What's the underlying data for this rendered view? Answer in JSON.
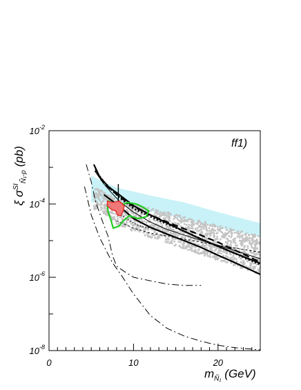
{
  "chart_data": {
    "type": "line",
    "panel_label": "ff1)",
    "xlabel": {
      "main": "m",
      "subscript": "Ñ₁",
      "unit": "(GeV)"
    },
    "ylabel": {
      "prefix": "ξ σ",
      "superscript": "SI",
      "subscript": "Ñ₁-p",
      "unit": "(pb)"
    },
    "xlim": [
      0,
      25
    ],
    "ylim": [
      1e-08,
      0.01
    ],
    "y_scale": "log",
    "x_ticks": [
      0,
      10,
      20
    ],
    "x_tick_labels": [
      "0",
      "10",
      "20"
    ],
    "y_ticks": [
      1e-08,
      1e-06,
      0.0001,
      0.01
    ],
    "y_tick_labels": [
      {
        "base": "10",
        "exp": "-8"
      },
      {
        "base": "10",
        "exp": "-6"
      },
      {
        "base": "10",
        "exp": "-4"
      },
      {
        "base": "10",
        "exp": "-2"
      }
    ],
    "grid": false,
    "regions": [
      {
        "style": "cyan-band",
        "color": "#c8f2f8",
        "upper": [
          [
            5,
            0.0006
          ],
          [
            6,
            0.00045
          ],
          [
            8,
            0.00028
          ],
          [
            12,
            0.00017
          ],
          [
            16,
            0.00011
          ],
          [
            20,
            6e-05
          ],
          [
            25,
            3e-05
          ]
        ],
        "lower": [
          [
            7,
            0.00011
          ],
          [
            10,
            8e-05
          ],
          [
            14,
            5e-05
          ],
          [
            18,
            3e-05
          ],
          [
            22,
            1.8e-05
          ],
          [
            25,
            1.3e-05
          ]
        ]
      },
      {
        "style": "grey-scatter",
        "color": "#c4c4c4",
        "upper": [
          [
            5.3,
            0.00045
          ],
          [
            6,
            0.00025
          ],
          [
            8,
            0.00014
          ],
          [
            10,
            0.0001
          ],
          [
            13,
            7e-05
          ],
          [
            16,
            4.5e-05
          ],
          [
            19,
            3e-05
          ],
          [
            22,
            2e-05
          ],
          [
            25,
            1.4e-05
          ]
        ],
        "lower": [
          [
            6,
            7e-05
          ],
          [
            8,
            2.8e-05
          ],
          [
            10,
            1.8e-05
          ],
          [
            13,
            1e-05
          ],
          [
            16,
            6e-06
          ],
          [
            19,
            3.5e-06
          ],
          [
            22,
            2e-06
          ],
          [
            25,
            1.2e-06
          ]
        ]
      }
    ],
    "contours": [
      {
        "style": "green",
        "color": "#22cc22",
        "points": [
          [
            7,
            0.00012
          ],
          [
            7.5,
            0.00011
          ],
          [
            8.3,
            9e-05
          ],
          [
            9.3,
            0.00011
          ],
          [
            10.3,
            0.0001
          ],
          [
            11,
            8.5e-05
          ],
          [
            11.8,
            6.5e-05
          ],
          [
            11.5,
            4.5e-05
          ],
          [
            10.5,
            4e-05
          ],
          [
            9.5,
            4.8e-05
          ],
          [
            8.8,
            3.5e-05
          ],
          [
            8.3,
            2.5e-05
          ],
          [
            7.6,
            2.2e-05
          ],
          [
            7.3,
            3.8e-05
          ],
          [
            7,
            6e-05
          ],
          [
            6.9,
            9e-05
          ]
        ]
      },
      {
        "style": "red-filled",
        "color": "#f07878",
        "stroke": "#e03030",
        "points": [
          [
            6.9,
            0.00012
          ],
          [
            7.6,
            0.00011
          ],
          [
            8.3,
            0.00012
          ],
          [
            8.9,
            9e-05
          ],
          [
            8.8,
            6.5e-05
          ],
          [
            8.5,
            4.8e-05
          ],
          [
            8.1,
            5e-05
          ],
          [
            7.9,
            6.5e-05
          ],
          [
            7.4,
            7e-05
          ],
          [
            6.9,
            9e-05
          ]
        ]
      }
    ],
    "series": [
      {
        "style": "thick-solid",
        "points": [
          [
            5.3,
            0.0012
          ],
          [
            6,
            0.00055
          ],
          [
            7,
            0.0003
          ],
          [
            8.3,
            0.00018
          ],
          [
            10,
            9e-05
          ],
          [
            12,
            5e-05
          ],
          [
            14,
            3e-05
          ],
          [
            16,
            1.8e-05
          ],
          [
            18,
            1.1e-05
          ],
          [
            20,
            7e-06
          ],
          [
            22,
            4.5e-06
          ],
          [
            25,
            2.4e-06
          ]
        ]
      },
      {
        "style": "thick-dashed",
        "points": [
          [
            5.5,
            0.0009
          ],
          [
            6.2,
            0.00045
          ],
          [
            7.2,
            0.00026
          ],
          [
            8.3,
            0.00016
          ],
          [
            10,
            8.5e-05
          ],
          [
            12,
            5e-05
          ],
          [
            14,
            3.2e-05
          ],
          [
            16,
            2.1e-05
          ],
          [
            18,
            1.4e-05
          ],
          [
            20,
            9e-06
          ],
          [
            22,
            5.5e-06
          ],
          [
            25,
            2.6e-06
          ]
        ]
      },
      {
        "style": "thick-dotted",
        "points": [
          [
            5.5,
            0.0008
          ],
          [
            6.5,
            0.0004
          ],
          [
            7.5,
            0.00023
          ],
          [
            8.5,
            0.00014
          ],
          [
            10,
            7.5e-05
          ],
          [
            12,
            4.5e-05
          ],
          [
            14,
            2.8e-05
          ],
          [
            16,
            1.8e-05
          ],
          [
            18,
            1.1e-05
          ],
          [
            20,
            7e-06
          ],
          [
            22,
            4.5e-06
          ],
          [
            25,
            2.2e-06
          ]
        ]
      },
      {
        "style": "thick-solid-lower",
        "points": [
          [
            6.5,
            0.00018
          ],
          [
            8.5,
            8e-05
          ],
          [
            10,
            4e-05
          ],
          [
            12,
            2.3e-05
          ],
          [
            14,
            1.5e-05
          ],
          [
            16,
            1e-05
          ],
          [
            18,
            6.5e-06
          ],
          [
            20,
            4e-06
          ],
          [
            22,
            2.5e-06
          ],
          [
            25,
            1.2e-06
          ]
        ]
      },
      {
        "style": "thin-solid",
        "points": [
          [
            5.4,
            0.0008
          ],
          [
            6.5,
            0.00035
          ],
          [
            7.5,
            0.00019
          ],
          [
            8.5,
            0.00011
          ],
          [
            10,
            6e-05
          ],
          [
            12,
            3.2e-05
          ],
          [
            14,
            2e-05
          ],
          [
            17,
            1.2e-05
          ],
          [
            20,
            7.5e-06
          ],
          [
            23,
            4.5e-06
          ],
          [
            25,
            3.2e-06
          ]
        ]
      },
      {
        "style": "thin-dotted",
        "points": [
          [
            7,
            0.0001
          ],
          [
            8,
            6e-05
          ],
          [
            9,
            4.2e-05
          ],
          [
            10,
            3e-05
          ],
          [
            11,
            2.4e-05
          ],
          [
            12,
            2.2e-05
          ]
        ]
      },
      {
        "style": "thin-dashed",
        "points": [
          [
            8,
            3.5e-05
          ],
          [
            10,
            2.2e-05
          ],
          [
            12,
            1.6e-05
          ],
          [
            16,
            1.1e-05
          ],
          [
            20,
            7.5e-06
          ],
          [
            25,
            4.8e-06
          ]
        ]
      },
      {
        "style": "vertical-step",
        "points": [
          [
            8.2,
            0.00035
          ],
          [
            8.2,
            0.0001
          ]
        ]
      },
      {
        "style": "dash-dot",
        "points": [
          [
            4.4,
            0.0012
          ],
          [
            5,
            0.0004
          ],
          [
            5.5,
            0.00012
          ],
          [
            6.3,
            3.5e-05
          ],
          [
            7,
            1.3e-05
          ],
          [
            7.5,
            4e-06
          ],
          [
            8,
            2e-06
          ],
          [
            9,
            1.4e-06
          ],
          [
            10,
            1e-06
          ],
          [
            12,
            8e-07
          ],
          [
            14,
            6.5e-07
          ],
          [
            16,
            6e-07
          ],
          [
            18,
            6e-07
          ]
        ]
      },
      {
        "style": "dash-dot",
        "points": [
          [
            4.2,
            0.0003
          ],
          [
            5,
            5e-05
          ],
          [
            6,
            1.2e-05
          ],
          [
            7.5,
            2.5e-06
          ],
          [
            8.5,
            1.2e-06
          ],
          [
            10,
            3.5e-07
          ],
          [
            12,
            9e-08
          ],
          [
            14,
            4e-08
          ],
          [
            16,
            2.5e-08
          ],
          [
            18,
            1.8e-08
          ],
          [
            20,
            1.4e-08
          ],
          [
            22,
            1.2e-08
          ],
          [
            25,
            1.05e-08
          ]
        ]
      }
    ]
  }
}
